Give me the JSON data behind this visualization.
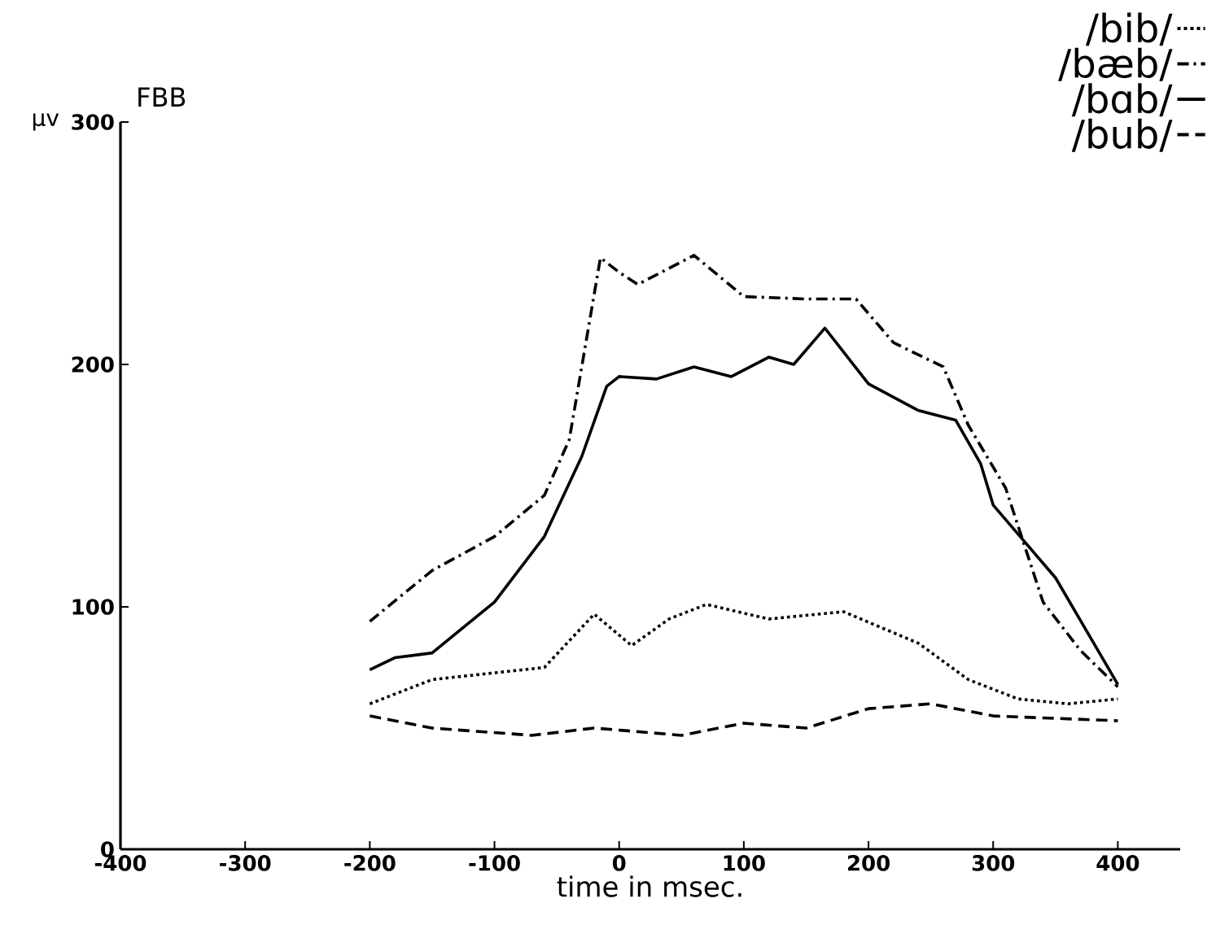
{
  "chart_data": {
    "type": "line",
    "title": "FBB",
    "ylabel": "µv",
    "xlabel": "time in msec.",
    "xlim": [
      -400,
      450
    ],
    "ylim": [
      0,
      300
    ],
    "xticks": [
      -400,
      -300,
      -200,
      -100,
      0,
      100,
      200,
      300,
      400
    ],
    "yticks": [
      0,
      100,
      200,
      300
    ],
    "legend": "top right",
    "grid": false,
    "marker": "none",
    "series": [
      {
        "name": "/bib/",
        "color": "#000000",
        "line_style": "dotted",
        "x": [
          -200,
          -150,
          -60,
          -20,
          10,
          40,
          70,
          120,
          180,
          240,
          280,
          320,
          360,
          400
        ],
        "values": [
          60,
          70,
          75,
          97,
          84,
          95,
          101,
          95,
          98,
          85,
          70,
          62,
          60,
          62
        ]
      },
      {
        "name": "/bæb/",
        "color": "#000000",
        "line_style": "dashdot",
        "x": [
          -200,
          -150,
          -100,
          -60,
          -40,
          -15,
          0,
          15,
          60,
          100,
          150,
          190,
          220,
          260,
          280,
          310,
          340,
          370,
          400
        ],
        "values": [
          94,
          115,
          129,
          146,
          169,
          244,
          238,
          233,
          245,
          228,
          227,
          227,
          209,
          199,
          175,
          149,
          102,
          82,
          67
        ]
      },
      {
        "name": "/bɑb/",
        "color": "#000000",
        "line_style": "solid",
        "x": [
          -200,
          -180,
          -150,
          -100,
          -60,
          -30,
          -10,
          0,
          30,
          60,
          90,
          120,
          140,
          165,
          200,
          240,
          270,
          290,
          300,
          350,
          400
        ],
        "values": [
          74,
          79,
          81,
          102,
          129,
          162,
          191,
          195,
          194,
          199,
          195,
          203,
          200,
          215,
          192,
          181,
          177,
          159,
          142,
          112,
          68
        ]
      },
      {
        "name": "/bub/",
        "color": "#000000",
        "line_style": "dashed",
        "x": [
          -200,
          -150,
          -70,
          -20,
          50,
          100,
          150,
          200,
          250,
          300,
          400
        ],
        "values": [
          55,
          50,
          47,
          50,
          47,
          52,
          50,
          58,
          60,
          55,
          53
        ]
      }
    ]
  }
}
